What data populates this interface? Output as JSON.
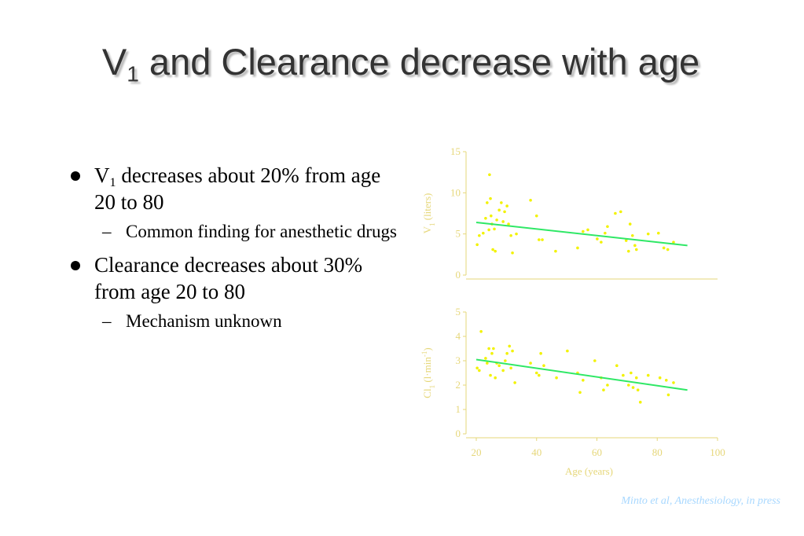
{
  "title": [
    {
      "text": "V"
    },
    {
      "text": "1",
      "script": "sub"
    },
    {
      "text": " and Clearance decrease with age"
    }
  ],
  "bullets": [
    {
      "text": [
        {
          "text": "V"
        },
        {
          "text": "1",
          "script": "sub"
        },
        {
          "text": " decreases about 20% from age 20 to 80"
        }
      ],
      "subs": [
        "Common finding for anesthetic drugs"
      ]
    },
    {
      "text": [
        {
          "text": "Clearance decreases about 30% from age 20 to 80"
        }
      ],
      "subs": [
        "Mechanism unknown"
      ]
    }
  ],
  "chart_data": [
    {
      "type": "scatter",
      "color": "#f2f200",
      "axis_color": "#e6d77a",
      "y_label": [
        {
          "text": "V"
        },
        {
          "text": "1",
          "script": "sub"
        },
        {
          "text": " (liters)"
        }
      ],
      "xlim": [
        20,
        100
      ],
      "ylim": [
        0,
        15
      ],
      "yticks": [
        0,
        5,
        10,
        15
      ],
      "x": [
        20.3,
        21,
        22.3,
        23.1,
        23.6,
        24.2,
        24.4,
        24.7,
        24.9,
        25.2,
        25.5,
        26,
        26.3,
        26.8,
        27.6,
        28.3,
        28.9,
        29.4,
        30.2,
        30.7,
        31.5,
        32,
        33.3,
        38,
        40,
        40.8,
        41.9,
        46.3,
        53.6,
        55.4,
        57,
        60.1,
        61.4,
        62.7,
        63.5,
        66.1,
        67.9,
        69.7,
        70.5,
        71,
        71.8,
        72.6,
        73.1,
        77,
        80.4,
        82.2,
        83.5,
        85.4
      ],
      "y": [
        3.7,
        4.8,
        5.1,
        6.9,
        8.8,
        5.5,
        12.2,
        9.3,
        7.2,
        6.2,
        3.1,
        5.6,
        2.9,
        6.7,
        7.9,
        8.8,
        6.5,
        7.7,
        8.4,
        6.2,
        4.8,
        2.7,
        5.0,
        9.1,
        7.2,
        4.3,
        4.3,
        2.9,
        3.3,
        5.3,
        5.5,
        4.4,
        4.0,
        5.1,
        5.9,
        7.5,
        7.7,
        4.2,
        2.9,
        6.2,
        4.8,
        3.6,
        3.1,
        5.0,
        5.1,
        3.3,
        3.1,
        4.0
      ],
      "trend": {
        "color": "#2fe866",
        "x": [
          20,
          90
        ],
        "y": [
          6.4,
          3.6
        ]
      }
    },
    {
      "type": "scatter",
      "color": "#f2f200",
      "axis_color": "#e6d77a",
      "y_label": [
        {
          "text": "Cl"
        },
        {
          "text": "1",
          "script": "sub"
        },
        {
          "text": " (l·min"
        },
        {
          "text": "-1",
          "script": "super"
        },
        {
          "text": ")"
        }
      ],
      "x_label": "Age (years)",
      "xlim": [
        20,
        100
      ],
      "xticks": [
        20,
        40,
        60,
        80,
        100
      ],
      "ylim": [
        0,
        5
      ],
      "yticks": [
        0,
        1,
        2,
        3,
        4,
        5
      ],
      "x": [
        20.3,
        21,
        21.6,
        23.1,
        23.6,
        24.2,
        24.7,
        25.2,
        25.7,
        26.3,
        26.8,
        27.6,
        28.9,
        29.6,
        30.2,
        31,
        31.5,
        32,
        32.8,
        38,
        40,
        40.8,
        41.4,
        42.4,
        46.6,
        50.2,
        53.6,
        54.4,
        55.4,
        59.3,
        61.4,
        62.2,
        63.5,
        66.6,
        68.7,
        70.5,
        71.3,
        72,
        73.1,
        73.6,
        74.4,
        77,
        80.9,
        83,
        83.7,
        85.4
      ],
      "y": [
        2.7,
        2.6,
        4.2,
        3.1,
        2.9,
        3.5,
        2.4,
        3.3,
        3.5,
        2.3,
        2.9,
        2.8,
        2.6,
        3.0,
        3.3,
        3.6,
        2.7,
        3.4,
        2.1,
        2.9,
        2.5,
        2.4,
        3.3,
        2.8,
        2.3,
        3.4,
        2.5,
        1.7,
        2.2,
        3.0,
        2.3,
        1.8,
        2.0,
        2.8,
        2.4,
        2.0,
        2.5,
        1.9,
        2.3,
        1.8,
        1.3,
        2.4,
        2.3,
        2.2,
        1.6,
        2.1
      ],
      "trend": {
        "color": "#2fe866",
        "x": [
          20,
          90
        ],
        "y": [
          3.05,
          1.8
        ]
      }
    }
  ],
  "citation": "Minto et al, Anesthesiology, in press"
}
